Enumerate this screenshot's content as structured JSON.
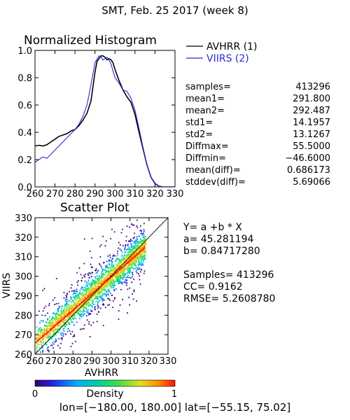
{
  "page": {
    "title": "SMT,  Feb. 25 2017 (week 8)",
    "footer": "lon=[−180.00, 180.00] lat=[−55.15, 75.02]"
  },
  "colors": {
    "avhrr_line": "#000000",
    "viirs_line": "#2a2ad6",
    "fit_line": "#ff0000",
    "diagonal": "#000000"
  },
  "chart_data": [
    {
      "type": "line",
      "title": "Normalized Histogram",
      "xlim": [
        260,
        330
      ],
      "ylim": [
        0.0,
        1.0
      ],
      "x_ticks": [
        "260",
        "270",
        "280",
        "290",
        "300",
        "310",
        "320",
        "330"
      ],
      "y_ticks": [
        "0.0",
        "0.2",
        "0.4",
        "0.6",
        "0.8",
        "1.0"
      ],
      "series": [
        {
          "name": "AVHRR (1)",
          "color": "#000000",
          "x": [
            260,
            262,
            264,
            266,
            268,
            270,
            272,
            274,
            276,
            278,
            280,
            282,
            284,
            286,
            288,
            290,
            291,
            292,
            293,
            294,
            295,
            296,
            297,
            298,
            299,
            300,
            302,
            304,
            306,
            308,
            310,
            312,
            314,
            316,
            318,
            320,
            322,
            324,
            326,
            328,
            330
          ],
          "y": [
            0.3,
            0.305,
            0.3,
            0.31,
            0.33,
            0.35,
            0.37,
            0.38,
            0.39,
            0.41,
            0.42,
            0.45,
            0.49,
            0.54,
            0.63,
            0.84,
            0.92,
            0.94,
            0.96,
            0.96,
            0.95,
            0.93,
            0.94,
            0.93,
            0.91,
            0.86,
            0.78,
            0.71,
            0.66,
            0.62,
            0.53,
            0.4,
            0.28,
            0.16,
            0.07,
            0.025,
            0.005,
            0,
            0,
            0,
            0
          ]
        },
        {
          "name": "VIIRS (2)",
          "color": "#2a2ad6",
          "x": [
            260,
            262,
            264,
            266,
            268,
            270,
            272,
            274,
            276,
            278,
            280,
            282,
            284,
            286,
            288,
            290,
            292,
            293,
            294,
            295,
            296,
            297,
            298,
            299,
            300,
            302,
            304,
            306,
            308,
            310,
            312,
            314,
            316,
            318,
            320,
            322,
            324,
            326,
            328,
            330
          ],
          "y": [
            0.18,
            0.2,
            0.22,
            0.21,
            0.24,
            0.27,
            0.3,
            0.33,
            0.36,
            0.39,
            0.42,
            0.46,
            0.52,
            0.6,
            0.75,
            0.91,
            0.96,
            0.95,
            0.93,
            0.94,
            0.95,
            0.93,
            0.9,
            0.85,
            0.8,
            0.76,
            0.71,
            0.7,
            0.65,
            0.56,
            0.43,
            0.29,
            0.16,
            0.07,
            0.02,
            0.005,
            0,
            0,
            0,
            0
          ]
        }
      ],
      "stats": [
        {
          "label": "samples=",
          "value": "413296"
        },
        {
          "label": "mean1=",
          "value": "291.800"
        },
        {
          "label": "mean2=",
          "value": "292.487"
        },
        {
          "label": "std1=",
          "value": "14.1957"
        },
        {
          "label": "std2=",
          "value": "13.1267"
        },
        {
          "label": "Diffmax=",
          "value": "55.5000"
        },
        {
          "label": "Diffmin=",
          "value": "−46.6000"
        },
        {
          "label": "mean(diff)=",
          "value": "0.686173"
        },
        {
          "label": "stddev(diff)=",
          "value": "5.69066"
        }
      ]
    },
    {
      "type": "scatter",
      "title": "Scatter Plot",
      "xlabel": "AVHRR",
      "ylabel": "VIIRS",
      "xlim": [
        260,
        330
      ],
      "ylim": [
        260,
        330
      ],
      "x_ticks": [
        "260",
        "270",
        "280",
        "290",
        "300",
        "310",
        "320",
        "330"
      ],
      "y_ticks": [
        "260",
        "270",
        "280",
        "290",
        "300",
        "310",
        "320",
        "330"
      ],
      "fit": {
        "intercept": 45.281194,
        "slope": 0.8471728,
        "x_range": [
          260,
          318
        ]
      },
      "annotations": [
        "Y= a +b * X",
        "a= 45.281194",
        "b= 0.84717280",
        "",
        "Samples= 413296",
        "CC=  0.9162",
        "RMSE= 5.2608780"
      ],
      "colorbar": {
        "label": "Density",
        "min_label": "0",
        "max_label": "1"
      }
    }
  ]
}
